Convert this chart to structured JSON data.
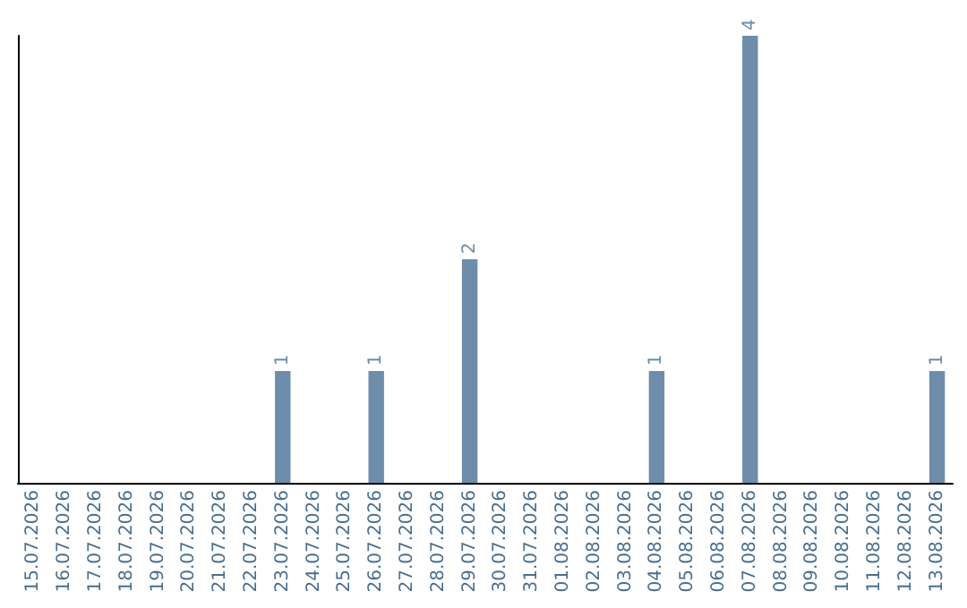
{
  "chart_data": {
    "type": "bar",
    "categories": [
      "15.07.2026",
      "16.07.2026",
      "17.07.2026",
      "18.07.2026",
      "19.07.2026",
      "20.07.2026",
      "21.07.2026",
      "22.07.2026",
      "23.07.2026",
      "24.07.2026",
      "25.07.2026",
      "26.07.2026",
      "27.07.2026",
      "28.07.2026",
      "29.07.2026",
      "30.07.2026",
      "31.07.2026",
      "01.08.2026",
      "02.08.2026",
      "03.08.2026",
      "04.08.2026",
      "05.08.2026",
      "06.08.2026",
      "07.08.2026",
      "08.08.2026",
      "09.08.2026",
      "10.08.2026",
      "11.08.2026",
      "12.08.2026",
      "13.08.2026"
    ],
    "values": [
      0,
      0,
      0,
      0,
      0,
      0,
      0,
      0,
      1,
      0,
      0,
      1,
      0,
      0,
      2,
      0,
      0,
      0,
      0,
      0,
      1,
      0,
      0,
      4,
      0,
      0,
      0,
      0,
      0,
      1
    ],
    "value_labels": [
      null,
      null,
      null,
      null,
      null,
      null,
      null,
      null,
      "1",
      null,
      null,
      "1",
      null,
      null,
      "2",
      null,
      null,
      null,
      null,
      null,
      "1",
      null,
      null,
      "4",
      null,
      null,
      null,
      null,
      null,
      "1"
    ],
    "color": "#6d8daa",
    "tick_labels": "x"
  }
}
